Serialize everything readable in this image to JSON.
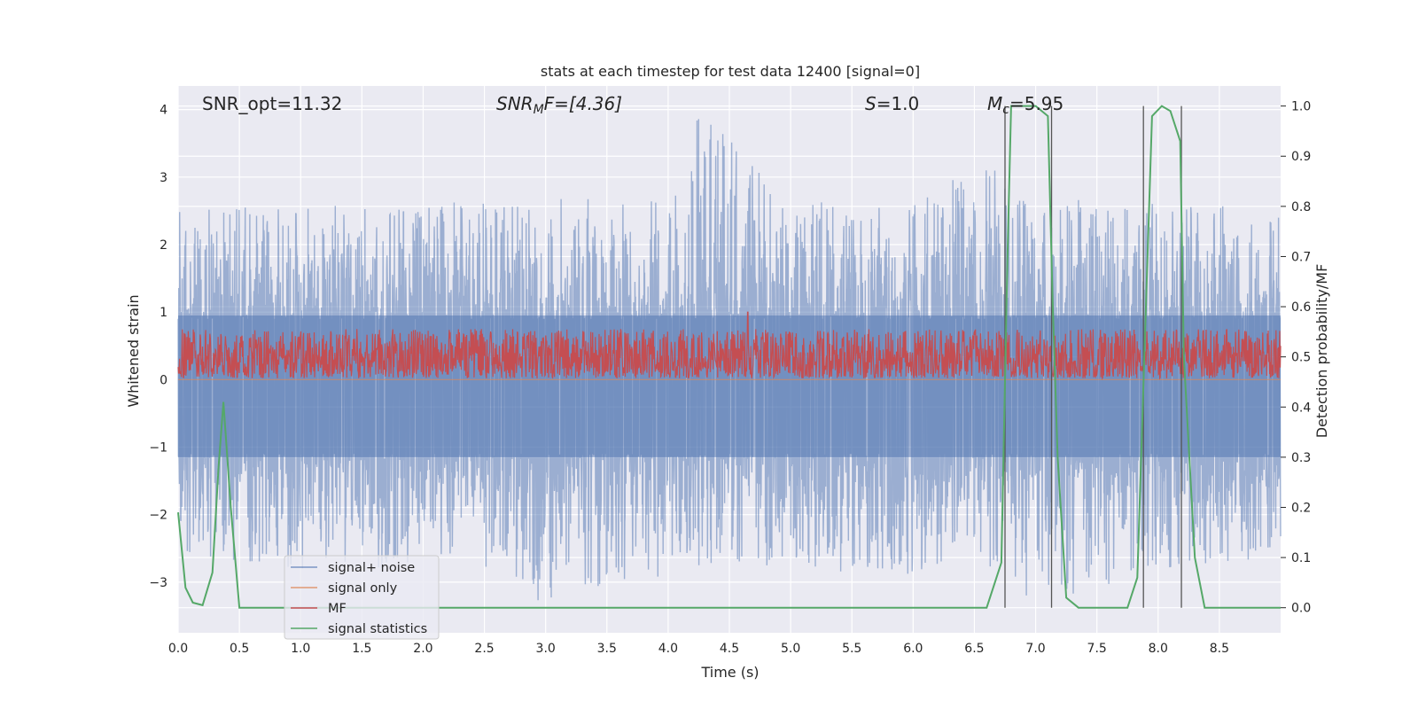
{
  "chart_data": {
    "type": "line",
    "title": "stats at each timestep for test data 12400 [signal=0]",
    "xlabel": "Time (s)",
    "ylabel": "Whitened strain",
    "y2label": "Detection probability/MF",
    "xlim": [
      0,
      9
    ],
    "ylim": [
      -3.75,
      4.35
    ],
    "y2lim": [
      -0.05,
      1.04
    ],
    "xticks": [
      0.0,
      0.5,
      1.0,
      1.5,
      2.0,
      2.5,
      3.0,
      3.5,
      4.0,
      4.5,
      5.0,
      5.5,
      6.0,
      6.5,
      7.0,
      7.5,
      8.0,
      8.5
    ],
    "xtick_labels": [
      "0.0",
      "0.5",
      "1.0",
      "1.5",
      "2.0",
      "2.5",
      "3.0",
      "3.5",
      "4.0",
      "4.5",
      "5.0",
      "5.5",
      "6.0",
      "6.5",
      "7.0",
      "7.5",
      "8.0",
      "8.5"
    ],
    "yticks": [
      4,
      3,
      2,
      1,
      0,
      -1,
      -2,
      -3
    ],
    "ytick_labels": [
      "4",
      "3",
      "2",
      "1",
      "0",
      "−1",
      "−2",
      "−3"
    ],
    "y2ticks": [
      1.0,
      0.9,
      0.8,
      0.7,
      0.6,
      0.5,
      0.4,
      0.3,
      0.2,
      0.1,
      0.0
    ],
    "y2tick_labels": [
      "1.0",
      "0.9",
      "0.8",
      "0.7",
      "0.6",
      "0.5",
      "0.4",
      "0.3",
      "0.2",
      "0.1",
      "0.0"
    ],
    "grid": true,
    "legend_position": "lower-left",
    "annotations": {
      "snr_opt": "SNR_opt=11.32",
      "snr_mf_main": "SNR",
      "snr_mf_sub": "M",
      "snr_mf_tail": "F=[4.36]",
      "s_main": "S",
      "s_tail": "=1.0",
      "mc_main": "M",
      "mc_sub": "c",
      "mc_tail": "=5.95"
    },
    "vertical_lines_x": [
      6.75,
      7.13,
      7.88,
      8.19
    ],
    "noise_envelope": {
      "x": [
        0.0,
        1.0,
        2.0,
        3.0,
        4.0,
        4.25,
        5.0,
        6.0,
        6.5,
        7.0,
        8.0,
        9.0
      ],
      "upper": [
        2.5,
        2.6,
        2.6,
        2.7,
        2.7,
        4.0,
        2.7,
        2.6,
        3.3,
        2.7,
        2.7,
        2.6
      ],
      "lower": [
        -2.6,
        -2.8,
        -2.8,
        -3.3,
        -2.9,
        -2.8,
        -2.8,
        -2.9,
        -2.6,
        -3.4,
        -2.8,
        -2.7
      ]
    },
    "mf_band": {
      "lower": 0.02,
      "upper": 0.75,
      "peak_x": 4.65,
      "peak_y": 1.0
    },
    "series": [
      {
        "name": "signal+ noise",
        "color": "#4c72b0",
        "opacity": 0.5,
        "axis": "left",
        "kind": "noise"
      },
      {
        "name": "signal only",
        "color": "#dd8452",
        "opacity": 0.6,
        "axis": "left",
        "x": [
          0,
          9
        ],
        "y": [
          0,
          0
        ]
      },
      {
        "name": "MF",
        "color": "#c44e52",
        "axis": "left",
        "kind": "mf"
      },
      {
        "name": "signal statistics",
        "color": "#55a868",
        "axis": "right",
        "x": [
          0.0,
          0.06,
          0.12,
          0.2,
          0.28,
          0.33,
          0.37,
          0.43,
          0.5,
          0.6,
          6.6,
          6.72,
          6.77,
          6.8,
          7.0,
          7.1,
          7.14,
          7.18,
          7.25,
          7.35,
          7.75,
          7.83,
          7.9,
          7.95,
          8.03,
          8.1,
          8.18,
          8.21,
          8.3,
          8.38,
          9.0
        ],
        "y": [
          0.19,
          0.04,
          0.01,
          0.005,
          0.07,
          0.28,
          0.41,
          0.2,
          0.0,
          0.0,
          0.0,
          0.09,
          0.7,
          1.0,
          1.0,
          0.98,
          0.6,
          0.3,
          0.02,
          0.0,
          0.0,
          0.06,
          0.6,
          0.98,
          1.0,
          0.99,
          0.93,
          0.5,
          0.1,
          0.0,
          0.0
        ]
      }
    ]
  }
}
